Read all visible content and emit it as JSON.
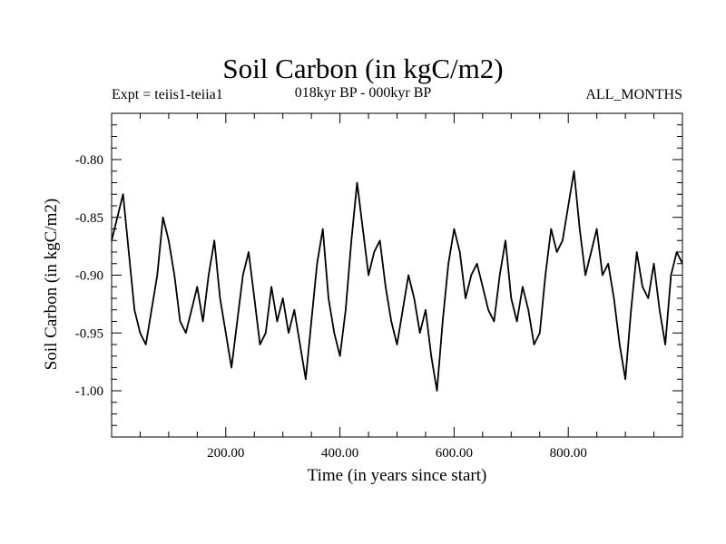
{
  "header": {
    "title": "Soil Carbon (in kgC/m2)",
    "left_label": "Expt = teiis1-teiia1",
    "center_label": "018kyr BP - 000kyr BP",
    "right_label": "ALL_MONTHS"
  },
  "chart_data": {
    "type": "line",
    "title": "Soil Carbon (in kgC/m2)",
    "xlabel": "Time (in years since start)",
    "ylabel": "Soil Carbon (in kgC/m2)",
    "xlim": [
      0,
      1000
    ],
    "ylim": [
      -1.04,
      -0.76
    ],
    "x_ticks": [
      200,
      400,
      600,
      800
    ],
    "x_tick_labels": [
      "200.00",
      "400.00",
      "600.00",
      "800.00"
    ],
    "y_ticks": [
      -0.8,
      -0.85,
      -0.9,
      -0.95,
      -1.0
    ],
    "y_tick_labels": [
      "-0.80",
      "-0.85",
      "-0.90",
      "-0.95",
      "-1.00"
    ],
    "grid": false,
    "line_color": "#000000",
    "series": [
      {
        "x": [
          0,
          10,
          20,
          30,
          40,
          50,
          60,
          70,
          80,
          90,
          100,
          110,
          120,
          130,
          140,
          150,
          160,
          170,
          180,
          190,
          200,
          210,
          220,
          230,
          240,
          250,
          260,
          270,
          280,
          290,
          300,
          310,
          320,
          330,
          340,
          350,
          360,
          370,
          380,
          390,
          400,
          410,
          420,
          430,
          440,
          450,
          460,
          470,
          480,
          490,
          500,
          510,
          520,
          530,
          540,
          550,
          560,
          570,
          580,
          590,
          600,
          610,
          620,
          630,
          640,
          650,
          660,
          670,
          680,
          690,
          700,
          710,
          720,
          730,
          740,
          750,
          760,
          770,
          780,
          790,
          800,
          810,
          820,
          830,
          840,
          850,
          860,
          870,
          880,
          890,
          900,
          910,
          920,
          930,
          940,
          950,
          960,
          970,
          980,
          990,
          1000
        ],
        "values": [
          -0.87,
          -0.85,
          -0.83,
          -0.88,
          -0.93,
          -0.95,
          -0.96,
          -0.93,
          -0.9,
          -0.85,
          -0.87,
          -0.9,
          -0.94,
          -0.95,
          -0.93,
          -0.91,
          -0.94,
          -0.9,
          -0.87,
          -0.92,
          -0.95,
          -0.98,
          -0.94,
          -0.9,
          -0.88,
          -0.92,
          -0.96,
          -0.95,
          -0.91,
          -0.94,
          -0.92,
          -0.95,
          -0.93,
          -0.96,
          -0.99,
          -0.94,
          -0.89,
          -0.86,
          -0.92,
          -0.95,
          -0.97,
          -0.93,
          -0.87,
          -0.82,
          -0.86,
          -0.9,
          -0.88,
          -0.87,
          -0.91,
          -0.94,
          -0.96,
          -0.93,
          -0.9,
          -0.92,
          -0.95,
          -0.93,
          -0.97,
          -1.0,
          -0.94,
          -0.89,
          -0.86,
          -0.88,
          -0.92,
          -0.9,
          -0.89,
          -0.91,
          -0.93,
          -0.94,
          -0.9,
          -0.87,
          -0.92,
          -0.94,
          -0.91,
          -0.93,
          -0.96,
          -0.95,
          -0.9,
          -0.86,
          -0.88,
          -0.87,
          -0.84,
          -0.81,
          -0.86,
          -0.9,
          -0.88,
          -0.86,
          -0.9,
          -0.89,
          -0.92,
          -0.96,
          -0.99,
          -0.93,
          -0.88,
          -0.91,
          -0.92,
          -0.89,
          -0.93,
          -0.96,
          -0.9,
          -0.88,
          -0.89
        ]
      }
    ]
  }
}
